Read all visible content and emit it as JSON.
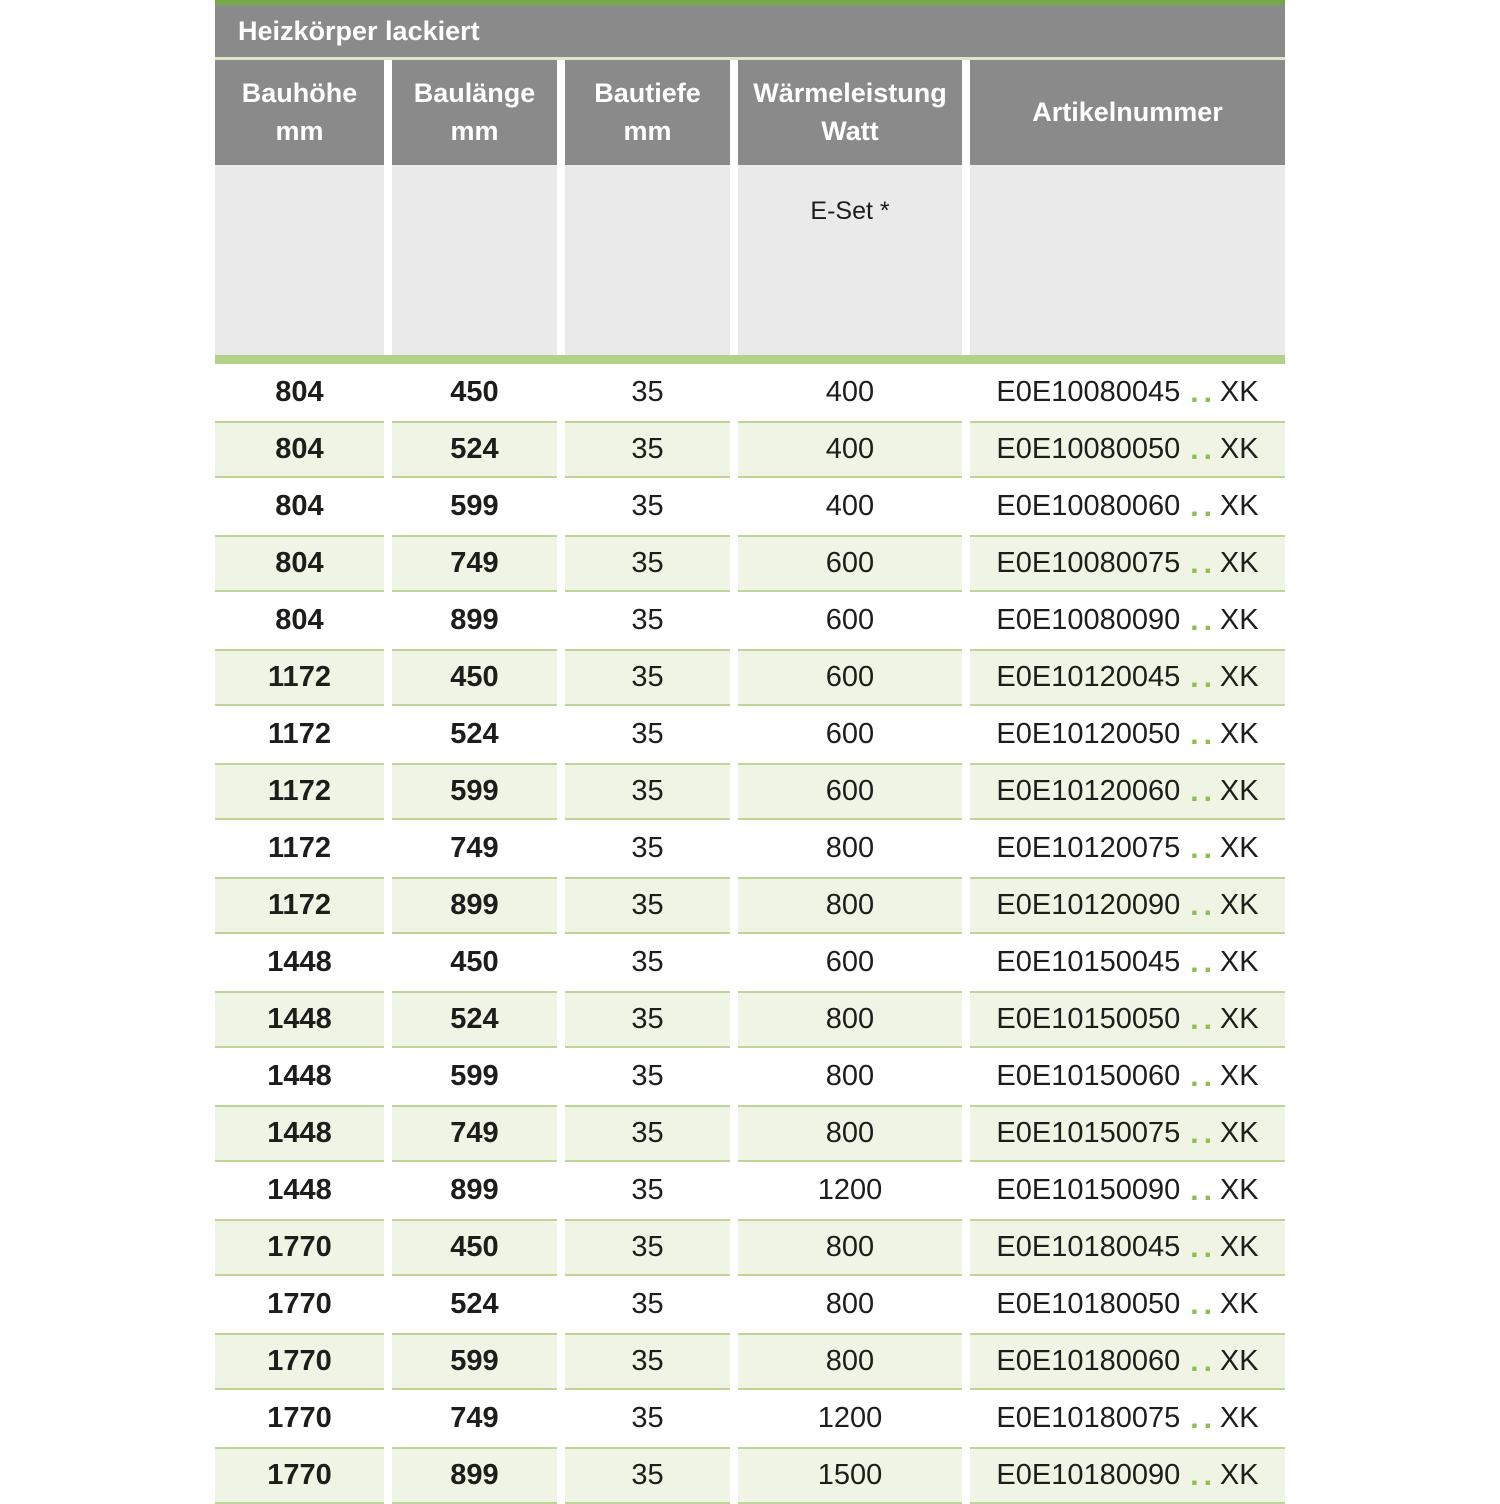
{
  "title": "Heizkörper lackiert",
  "columns": [
    {
      "label": "Bauhöhe",
      "unit": "mm"
    },
    {
      "label": "Baulänge",
      "unit": "mm"
    },
    {
      "label": "Bautiefe",
      "unit": "mm"
    },
    {
      "label": "Wärmeleistung",
      "unit": "Watt"
    },
    {
      "label": "Artikelnummer",
      "unit": ""
    }
  ],
  "subheader": {
    "eset_label": "E-Set *"
  },
  "colors": {
    "header_gray": "#8a8a8b",
    "top_line_green": "#76a84a",
    "divider_green": "#b3d189",
    "alt_row_bg": "#f0f4e5",
    "alt_row_border": "#bdd697",
    "dots_green": "#8cc04c",
    "subheader_bg": "#eaeaea"
  },
  "rows": [
    {
      "bauhoehe": "804",
      "baulaenge": "450",
      "bautiefe": "35",
      "watt": "400",
      "art_code": "E0E10080045",
      "art_dots": "..",
      "art_suffix": "XK"
    },
    {
      "bauhoehe": "804",
      "baulaenge": "524",
      "bautiefe": "35",
      "watt": "400",
      "art_code": "E0E10080050",
      "art_dots": "..",
      "art_suffix": "XK"
    },
    {
      "bauhoehe": "804",
      "baulaenge": "599",
      "bautiefe": "35",
      "watt": "400",
      "art_code": "E0E10080060",
      "art_dots": "..",
      "art_suffix": "XK"
    },
    {
      "bauhoehe": "804",
      "baulaenge": "749",
      "bautiefe": "35",
      "watt": "600",
      "art_code": "E0E10080075",
      "art_dots": "..",
      "art_suffix": "XK"
    },
    {
      "bauhoehe": "804",
      "baulaenge": "899",
      "bautiefe": "35",
      "watt": "600",
      "art_code": "E0E10080090",
      "art_dots": "..",
      "art_suffix": "XK"
    },
    {
      "bauhoehe": "1172",
      "baulaenge": "450",
      "bautiefe": "35",
      "watt": "600",
      "art_code": "E0E10120045",
      "art_dots": "..",
      "art_suffix": "XK"
    },
    {
      "bauhoehe": "1172",
      "baulaenge": "524",
      "bautiefe": "35",
      "watt": "600",
      "art_code": "E0E10120050",
      "art_dots": "..",
      "art_suffix": "XK"
    },
    {
      "bauhoehe": "1172",
      "baulaenge": "599",
      "bautiefe": "35",
      "watt": "600",
      "art_code": "E0E10120060",
      "art_dots": "..",
      "art_suffix": "XK"
    },
    {
      "bauhoehe": "1172",
      "baulaenge": "749",
      "bautiefe": "35",
      "watt": "800",
      "art_code": "E0E10120075",
      "art_dots": "..",
      "art_suffix": "XK"
    },
    {
      "bauhoehe": "1172",
      "baulaenge": "899",
      "bautiefe": "35",
      "watt": "800",
      "art_code": "E0E10120090",
      "art_dots": "..",
      "art_suffix": "XK"
    },
    {
      "bauhoehe": "1448",
      "baulaenge": "450",
      "bautiefe": "35",
      "watt": "600",
      "art_code": "E0E10150045",
      "art_dots": "..",
      "art_suffix": "XK"
    },
    {
      "bauhoehe": "1448",
      "baulaenge": "524",
      "bautiefe": "35",
      "watt": "800",
      "art_code": "E0E10150050",
      "art_dots": "..",
      "art_suffix": "XK"
    },
    {
      "bauhoehe": "1448",
      "baulaenge": "599",
      "bautiefe": "35",
      "watt": "800",
      "art_code": "E0E10150060",
      "art_dots": "..",
      "art_suffix": "XK"
    },
    {
      "bauhoehe": "1448",
      "baulaenge": "749",
      "bautiefe": "35",
      "watt": "800",
      "art_code": "E0E10150075",
      "art_dots": "..",
      "art_suffix": "XK"
    },
    {
      "bauhoehe": "1448",
      "baulaenge": "899",
      "bautiefe": "35",
      "watt": "1200",
      "art_code": "E0E10150090",
      "art_dots": "..",
      "art_suffix": "XK"
    },
    {
      "bauhoehe": "1770",
      "baulaenge": "450",
      "bautiefe": "35",
      "watt": "800",
      "art_code": "E0E10180045",
      "art_dots": "..",
      "art_suffix": "XK"
    },
    {
      "bauhoehe": "1770",
      "baulaenge": "524",
      "bautiefe": "35",
      "watt": "800",
      "art_code": "E0E10180050",
      "art_dots": "..",
      "art_suffix": "XK"
    },
    {
      "bauhoehe": "1770",
      "baulaenge": "599",
      "bautiefe": "35",
      "watt": "800",
      "art_code": "E0E10180060",
      "art_dots": "..",
      "art_suffix": "XK"
    },
    {
      "bauhoehe": "1770",
      "baulaenge": "749",
      "bautiefe": "35",
      "watt": "1200",
      "art_code": "E0E10180075",
      "art_dots": "..",
      "art_suffix": "XK"
    },
    {
      "bauhoehe": "1770",
      "baulaenge": "899",
      "bautiefe": "35",
      "watt": "1500",
      "art_code": "E0E10180090",
      "art_dots": "..",
      "art_suffix": "XK"
    }
  ]
}
